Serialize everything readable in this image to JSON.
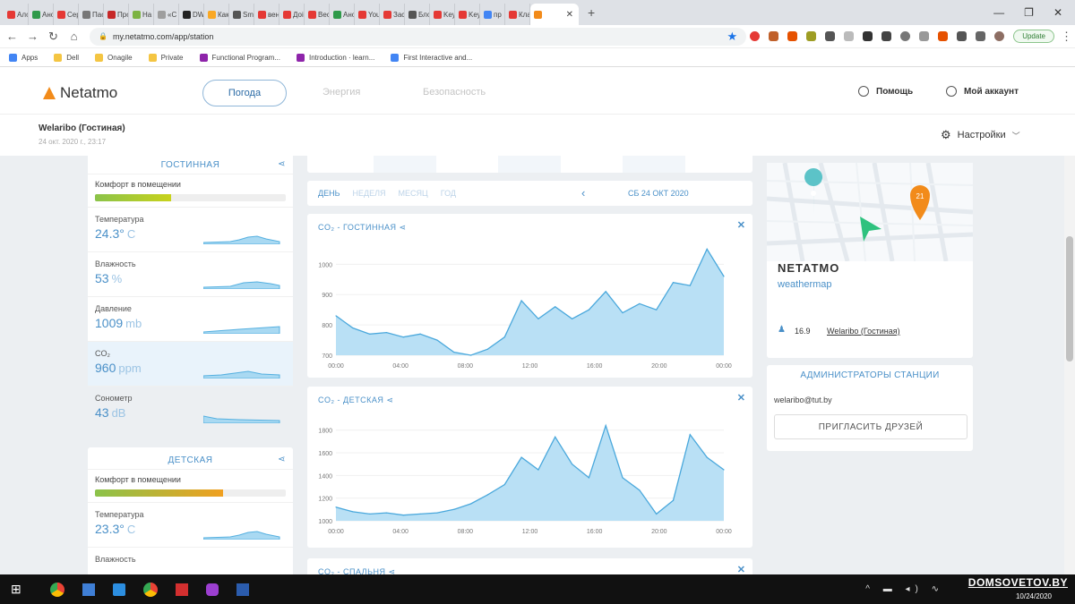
{
  "browser": {
    "tabs": [
      {
        "label": "Ало",
        "color": "#e53935"
      },
      {
        "label": "Ано",
        "color": "#2e9a4a"
      },
      {
        "label": "Сер",
        "color": "#e53935"
      },
      {
        "label": "Пас",
        "color": "#777777"
      },
      {
        "label": "Про",
        "color": "#c62828"
      },
      {
        "label": "На",
        "color": "#7cb342"
      },
      {
        "label": "«С",
        "color": "#9e9e9e"
      },
      {
        "label": "DW",
        "color": "#222222"
      },
      {
        "label": "Как",
        "color": "#f9a825"
      },
      {
        "label": "Sm",
        "color": "#555555"
      },
      {
        "label": "вен",
        "color": "#e53935"
      },
      {
        "label": "Доі",
        "color": "#e53935"
      },
      {
        "label": "Вес",
        "color": "#e53935"
      },
      {
        "label": "Ано",
        "color": "#2e9a4a"
      },
      {
        "label": "You",
        "color": "#e53935"
      },
      {
        "label": "Зас",
        "color": "#e53935"
      },
      {
        "label": "Бло",
        "color": "#555555"
      },
      {
        "label": "Key",
        "color": "#e53935"
      },
      {
        "label": "Key",
        "color": "#e53935"
      },
      {
        "label": "пр",
        "color": "#4285f4"
      },
      {
        "label": "Кла",
        "color": "#e53935"
      }
    ],
    "active_tab_icon_color": "#f28b1a",
    "url": "my.netatmo.com/app/station",
    "update_label": "Update",
    "bookmarks": [
      {
        "label": "Apps",
        "color": "#4285f4"
      },
      {
        "label": "Dell",
        "color": "#f4c542"
      },
      {
        "label": "Onagile",
        "color": "#f4c542"
      },
      {
        "label": "Private",
        "color": "#f4c542"
      },
      {
        "label": "Functional Program...",
        "color": "#8e24aa"
      },
      {
        "label": "Introduction · learn...",
        "color": "#8e24aa"
      },
      {
        "label": "First Interactive and...",
        "color": "#4285f4"
      }
    ]
  },
  "header": {
    "brand": "Netatmo",
    "tabs": [
      "Погода",
      "Энергия",
      "Безопасность"
    ],
    "help": "Помощь",
    "account": "Мой аккаунт",
    "station_name": "Welaribo (Гостиная)",
    "station_date": "24 окт. 2020 г., 23:17",
    "settings": "Настройки"
  },
  "left": {
    "living": {
      "title": "ГОСТИННАЯ",
      "comfort_label": "Комфорт в помещении",
      "comfort_pct": 0.4,
      "metrics": [
        {
          "label": "Температура",
          "value": "24.3°",
          "unit": "C"
        },
        {
          "label": "Влажность",
          "value": "53",
          "unit": "%"
        },
        {
          "label": "Давление",
          "value": "1009",
          "unit": "mb"
        },
        {
          "label": "CO₂",
          "value": "960",
          "unit": "ppm"
        },
        {
          "label": "Сонометр",
          "value": "43",
          "unit": "dB"
        }
      ]
    },
    "kids": {
      "title": "ДЕТСКАЯ",
      "comfort_label": "Комфорт в помещении",
      "comfort_pct": 0.67,
      "metrics": [
        {
          "label": "Температура",
          "value": "23.3°",
          "unit": "C"
        },
        {
          "label": "Влажность",
          "value": "",
          "unit": ""
        }
      ]
    }
  },
  "center": {
    "periods": [
      "ДЕНЬ",
      "НЕДЕЛЯ",
      "МЕСЯЦ",
      "ГОД"
    ],
    "date": "СБ 24 ОКТ 2020",
    "chart1_title": "CO₂ - ГОСТИННАЯ",
    "chart2_title": "CO₂ - ДЕТСКАЯ",
    "chart3_title": "CO₂ - СПАЛЬНЯ"
  },
  "chart_data": [
    {
      "type": "area",
      "title": "CO₂ - ГОСТИННАЯ",
      "x": [
        "00:00",
        "01:00",
        "02:00",
        "03:00",
        "04:00",
        "05:00",
        "06:00",
        "07:00",
        "08:00",
        "09:00",
        "10:00",
        "11:00",
        "12:00",
        "13:00",
        "14:00",
        "15:00",
        "16:00",
        "17:00",
        "18:00",
        "19:00",
        "20:00",
        "21:00",
        "22:00",
        "23:00"
      ],
      "xticks": [
        "00:00",
        "04:00",
        "08:00",
        "12:00",
        "16:00",
        "20:00",
        "00:00"
      ],
      "yticks": [
        700,
        800,
        900,
        1000
      ],
      "ylim": [
        700,
        1060
      ],
      "values": [
        830,
        790,
        770,
        775,
        760,
        770,
        750,
        710,
        700,
        720,
        760,
        880,
        820,
        860,
        820,
        850,
        910,
        840,
        870,
        850,
        940,
        930,
        1050,
        960
      ]
    },
    {
      "type": "area",
      "title": "CO₂ - ДЕТСКАЯ",
      "x": [
        "00:00",
        "01:00",
        "02:00",
        "03:00",
        "04:00",
        "05:00",
        "06:00",
        "07:00",
        "08:00",
        "09:00",
        "10:00",
        "11:00",
        "12:00",
        "13:00",
        "14:00",
        "15:00",
        "16:00",
        "17:00",
        "18:00",
        "19:00",
        "20:00",
        "21:00",
        "22:00",
        "23:00"
      ],
      "xticks": [
        "00:00",
        "04:00",
        "08:00",
        "12:00",
        "16:00",
        "20:00",
        "00:00"
      ],
      "yticks": [
        1000,
        1200,
        1400,
        1600,
        1800
      ],
      "ylim": [
        1000,
        1900
      ],
      "values": [
        1120,
        1080,
        1060,
        1070,
        1050,
        1060,
        1070,
        1100,
        1150,
        1230,
        1320,
        1560,
        1450,
        1740,
        1500,
        1380,
        1840,
        1380,
        1270,
        1060,
        1180,
        1760,
        1560,
        1450
      ]
    }
  ],
  "right": {
    "map_badge": "21",
    "brand_upper": "NETATMO",
    "brand_sub": "weathermap",
    "temp": "16.9",
    "station_link": "Welaribo (Гостиная)",
    "admins_title": "АДМИНИСТРАТОРЫ СТАНЦИИ",
    "admin_email": "welaribo@tut.by",
    "invite": "ПРИГЛАСИТЬ ДРУЗЕЙ"
  },
  "taskbar": {
    "watermark": "DOMSOVETOV.BY",
    "date": "10/24/2020"
  }
}
